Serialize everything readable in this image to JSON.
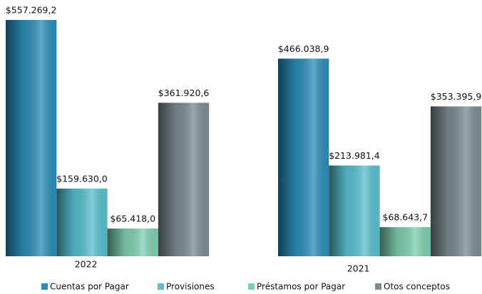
{
  "chart_data": {
    "type": "bar",
    "categories": [
      "2022",
      "2021"
    ],
    "series": [
      {
        "name": "Cuentas por Pagar",
        "color": "#2b8db8",
        "values": [
          557269.2,
          466038.9
        ],
        "value_labels": [
          "$557.269,2",
          "$466.038,9"
        ]
      },
      {
        "name": "Provisiones",
        "color": "#58bfce",
        "values": [
          159630.0,
          213981.4
        ],
        "value_labels": [
          "$159.630,0",
          "$213.981,4"
        ]
      },
      {
        "name": "Préstamos por Pagar",
        "color": "#7ecfb0",
        "values": [
          65418.0,
          68643.7
        ],
        "value_labels": [
          "$65.418,0",
          "$68.643,7"
        ]
      },
      {
        "name": "Otos conceptos",
        "color": "#7a8c90",
        "values": [
          361920.6,
          353395.9
        ],
        "value_labels": [
          "$361.920,6",
          "$353.395,9"
        ]
      }
    ],
    "legend": "bottom"
  }
}
